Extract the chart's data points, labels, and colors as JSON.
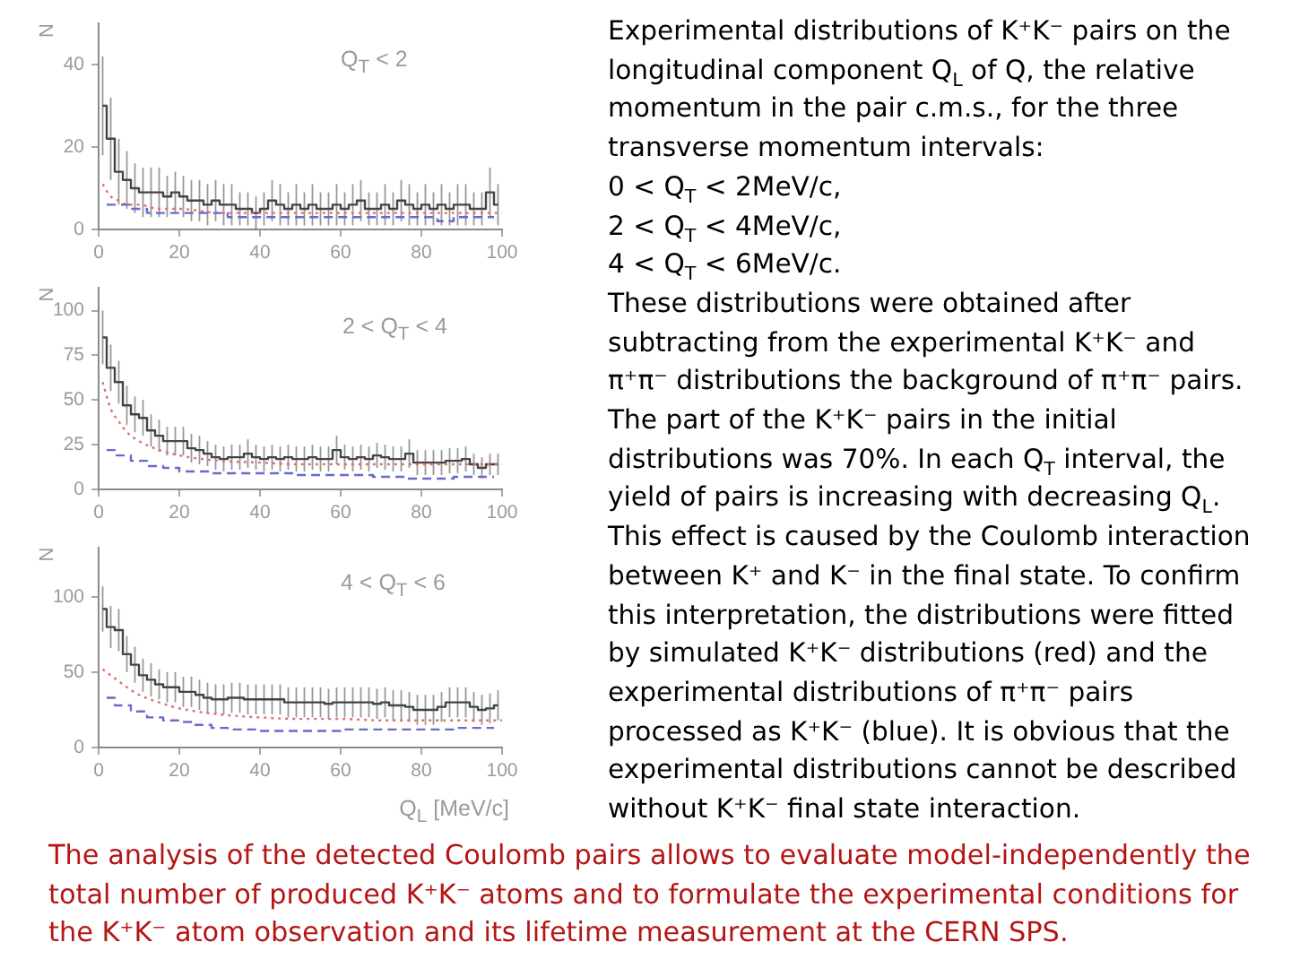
{
  "chart_data": [
    {
      "type": "step",
      "title": "Q$_{T}$ < 2",
      "ylabel": "N",
      "x": [
        1,
        3,
        5,
        7,
        9,
        11,
        13,
        15,
        17,
        19,
        21,
        23,
        25,
        27,
        29,
        31,
        33,
        35,
        37,
        39,
        41,
        43,
        45,
        47,
        49,
        51,
        53,
        55,
        57,
        59,
        61,
        63,
        65,
        67,
        69,
        71,
        73,
        75,
        77,
        79,
        81,
        83,
        85,
        87,
        89,
        91,
        93,
        95,
        97,
        99
      ],
      "xlim": [
        0,
        100
      ],
      "xticks": [
        0,
        20,
        40,
        60,
        80,
        100
      ],
      "ylim": [
        0,
        50
      ],
      "yticks": [
        0,
        20,
        40
      ],
      "series": [
        {
          "color": "#444444",
          "values": [
            30,
            22,
            14,
            12,
            10,
            9,
            9,
            9,
            8,
            9,
            8,
            7,
            7,
            6,
            7,
            6,
            6,
            5,
            5,
            4,
            5,
            7,
            6,
            5,
            6,
            5,
            6,
            5,
            5,
            6,
            5,
            6,
            7,
            5,
            5,
            6,
            5,
            7,
            6,
            5,
            6,
            5,
            6,
            5,
            6,
            6,
            5,
            5,
            9,
            6
          ],
          "errors": [
            12,
            10,
            8,
            7,
            6,
            6,
            6,
            6,
            5,
            5,
            5,
            5,
            5,
            5,
            5,
            5,
            5,
            4,
            4,
            4,
            4,
            5,
            5,
            4,
            5,
            4,
            5,
            4,
            4,
            5,
            4,
            5,
            5,
            4,
            4,
            5,
            4,
            5,
            5,
            4,
            5,
            4,
            5,
            4,
            5,
            5,
            4,
            4,
            6,
            5
          ]
        },
        {
          "type": "line",
          "line_style": "dotted",
          "color": "#e07070",
          "x": [
            1,
            3,
            5,
            7,
            10,
            15,
            20,
            30,
            40,
            50,
            60,
            70,
            80,
            90,
            100
          ],
          "values": [
            11,
            8,
            7,
            6,
            6,
            5,
            5,
            4,
            4,
            4,
            4,
            4,
            4,
            4,
            4
          ]
        },
        {
          "type": "step",
          "line_style": "dashed",
          "color": "#6a6acc",
          "x": [
            2,
            6,
            10,
            14,
            18,
            22,
            26,
            30,
            34,
            38,
            42,
            46,
            50,
            54,
            58,
            62,
            66,
            70,
            74,
            78,
            82,
            86,
            90,
            94,
            98
          ],
          "values": [
            6,
            6,
            5,
            4,
            4,
            4,
            4,
            4,
            3,
            3,
            3,
            3,
            3,
            3,
            3,
            3,
            3,
            3,
            3,
            3,
            3,
            2,
            3,
            3,
            3
          ]
        }
      ]
    },
    {
      "type": "step",
      "title": "2 < Q$_{T}$ < 4",
      "ylabel": "N",
      "x": [
        1,
        3,
        5,
        7,
        9,
        11,
        13,
        15,
        17,
        19,
        21,
        23,
        25,
        27,
        29,
        31,
        33,
        35,
        37,
        39,
        41,
        43,
        45,
        47,
        49,
        51,
        53,
        55,
        57,
        59,
        61,
        63,
        65,
        67,
        69,
        71,
        73,
        75,
        77,
        79,
        81,
        83,
        85,
        87,
        89,
        91,
        93,
        95,
        97,
        99
      ],
      "xlim": [
        0,
        100
      ],
      "xticks": [
        0,
        20,
        40,
        60,
        80,
        100
      ],
      "ylim": [
        0,
        113
      ],
      "yticks": [
        0,
        25,
        50,
        75,
        100
      ],
      "series": [
        {
          "color": "#444444",
          "values": [
            85,
            68,
            60,
            47,
            42,
            40,
            33,
            30,
            27,
            27,
            27,
            23,
            22,
            20,
            18,
            17,
            18,
            18,
            20,
            18,
            17,
            18,
            17,
            18,
            17,
            17,
            18,
            17,
            17,
            22,
            18,
            17,
            18,
            17,
            19,
            18,
            17,
            17,
            20,
            15,
            15,
            15,
            15,
            16,
            16,
            17,
            14,
            12,
            14,
            14
          ],
          "errors": [
            15,
            13,
            12,
            11,
            10,
            10,
            9,
            9,
            8,
            8,
            8,
            8,
            8,
            7,
            7,
            7,
            7,
            7,
            8,
            7,
            7,
            7,
            7,
            7,
            7,
            7,
            7,
            7,
            7,
            8,
            7,
            7,
            7,
            7,
            7,
            7,
            7,
            7,
            8,
            7,
            7,
            7,
            7,
            7,
            7,
            7,
            6,
            6,
            6,
            6
          ]
        },
        {
          "type": "line",
          "line_style": "dotted",
          "color": "#e07070",
          "x": [
            1,
            3,
            5,
            7,
            10,
            15,
            20,
            30,
            40,
            50,
            60,
            70,
            80,
            90,
            100
          ],
          "values": [
            60,
            45,
            38,
            32,
            27,
            22,
            19,
            16,
            15,
            14,
            14,
            14,
            14,
            14,
            14
          ]
        },
        {
          "type": "step",
          "line_style": "dashed",
          "color": "#6a6acc",
          "x": [
            2,
            6,
            10,
            14,
            18,
            22,
            26,
            30,
            34,
            38,
            42,
            46,
            50,
            54,
            58,
            62,
            66,
            70,
            74,
            78,
            82,
            86,
            90,
            94,
            98
          ],
          "values": [
            22,
            19,
            16,
            13,
            12,
            10,
            10,
            9,
            9,
            9,
            9,
            9,
            8,
            8,
            8,
            8,
            8,
            7,
            7,
            6,
            6,
            6,
            7,
            7,
            7
          ]
        }
      ]
    },
    {
      "type": "step",
      "title": "4 < Q$_{T}$ < 6",
      "xlabel": "Q$_{L}$ [MeV/c]",
      "ylabel": "N",
      "x": [
        1,
        3,
        5,
        7,
        9,
        11,
        13,
        15,
        17,
        19,
        21,
        23,
        25,
        27,
        29,
        31,
        33,
        35,
        37,
        39,
        41,
        43,
        45,
        47,
        49,
        51,
        53,
        55,
        57,
        59,
        61,
        63,
        65,
        67,
        69,
        71,
        73,
        75,
        77,
        79,
        81,
        83,
        85,
        87,
        89,
        91,
        93,
        95,
        97,
        99
      ],
      "xlim": [
        0,
        100
      ],
      "xticks": [
        0,
        20,
        40,
        60,
        80,
        100
      ],
      "ylim": [
        0,
        133
      ],
      "yticks": [
        0,
        50,
        100
      ],
      "series": [
        {
          "color": "#444444",
          "values": [
            92,
            80,
            78,
            62,
            55,
            48,
            45,
            42,
            40,
            40,
            37,
            37,
            35,
            33,
            32,
            32,
            33,
            33,
            32,
            32,
            32,
            32,
            32,
            30,
            30,
            30,
            30,
            30,
            29,
            30,
            30,
            30,
            30,
            30,
            29,
            30,
            28,
            28,
            27,
            25,
            25,
            25,
            27,
            30,
            30,
            30,
            27,
            25,
            26,
            28
          ],
          "errors": [
            15,
            14,
            14,
            12,
            12,
            11,
            11,
            10,
            10,
            10,
            10,
            10,
            10,
            10,
            10,
            10,
            10,
            10,
            10,
            10,
            10,
            10,
            10,
            10,
            10,
            10,
            10,
            10,
            10,
            10,
            10,
            10,
            10,
            10,
            10,
            10,
            10,
            10,
            10,
            10,
            10,
            10,
            10,
            10,
            10,
            10,
            10,
            10,
            10,
            10
          ]
        },
        {
          "type": "line",
          "line_style": "dotted",
          "color": "#e07070",
          "x": [
            1,
            3,
            5,
            7,
            10,
            15,
            20,
            30,
            40,
            50,
            60,
            70,
            80,
            90,
            100
          ],
          "values": [
            52,
            48,
            44,
            40,
            35,
            30,
            26,
            22,
            20,
            19,
            19,
            18,
            18,
            18,
            18
          ]
        },
        {
          "type": "step",
          "line_style": "dashed",
          "color": "#6a6acc",
          "x": [
            2,
            6,
            10,
            14,
            18,
            22,
            26,
            30,
            34,
            38,
            42,
            46,
            50,
            54,
            58,
            62,
            66,
            70,
            74,
            78,
            82,
            86,
            90,
            94,
            98
          ],
          "values": [
            33,
            28,
            24,
            20,
            18,
            17,
            15,
            13,
            12,
            12,
            11,
            11,
            11,
            11,
            11,
            12,
            12,
            12,
            12,
            12,
            12,
            12,
            13,
            13,
            13
          ]
        }
      ]
    },
    {
      "type": "other",
      "annotations": [
        "Experimental distributions of K⁺K⁻ pairs on the longitudinal component Q$_{L}$ of Q, the relative momentum in the pair c.m.s., for the three transverse momentum intervals:",
        "0 < Q$_{T}$ < 2MeV/c,",
        "2 < Q$_{T}$ < 4MeV/c,",
        "4 < Q$_{T}$ < 6MeV/c.",
        "These distributions were obtained after subtracting from the experimental K⁺K⁻ and π⁺π⁻ distributions the background of π⁺π⁻ pairs. The part of the K⁺K⁻ pairs in the initial distributions was 70%. In each Q$_{T}$ interval, the yield of pairs is increasing with decreasing Q$_{L}$. This effect is caused by the Coulomb interaction between K⁺ and K⁻ in the final state.  To confirm this interpretation, the distributions were fitted by simulated K⁺K⁻ distributions (red) and the experimental distributions of π⁺π⁻ pairs processed as K⁺K⁻ (blue). It is obvious that the experimental distributions cannot be described without K⁺K⁻ final state interaction."
      ]
    },
    {
      "type": "other",
      "annotations": [
        "The analysis of the detected Coulomb pairs allows to evaluate model-independently the total number of produced K⁺K⁻ atoms and to formulate the experimental conditions for the K⁺K⁻ atom observation and its lifetime measurement at the CERN SPS."
      ]
    }
  ]
}
